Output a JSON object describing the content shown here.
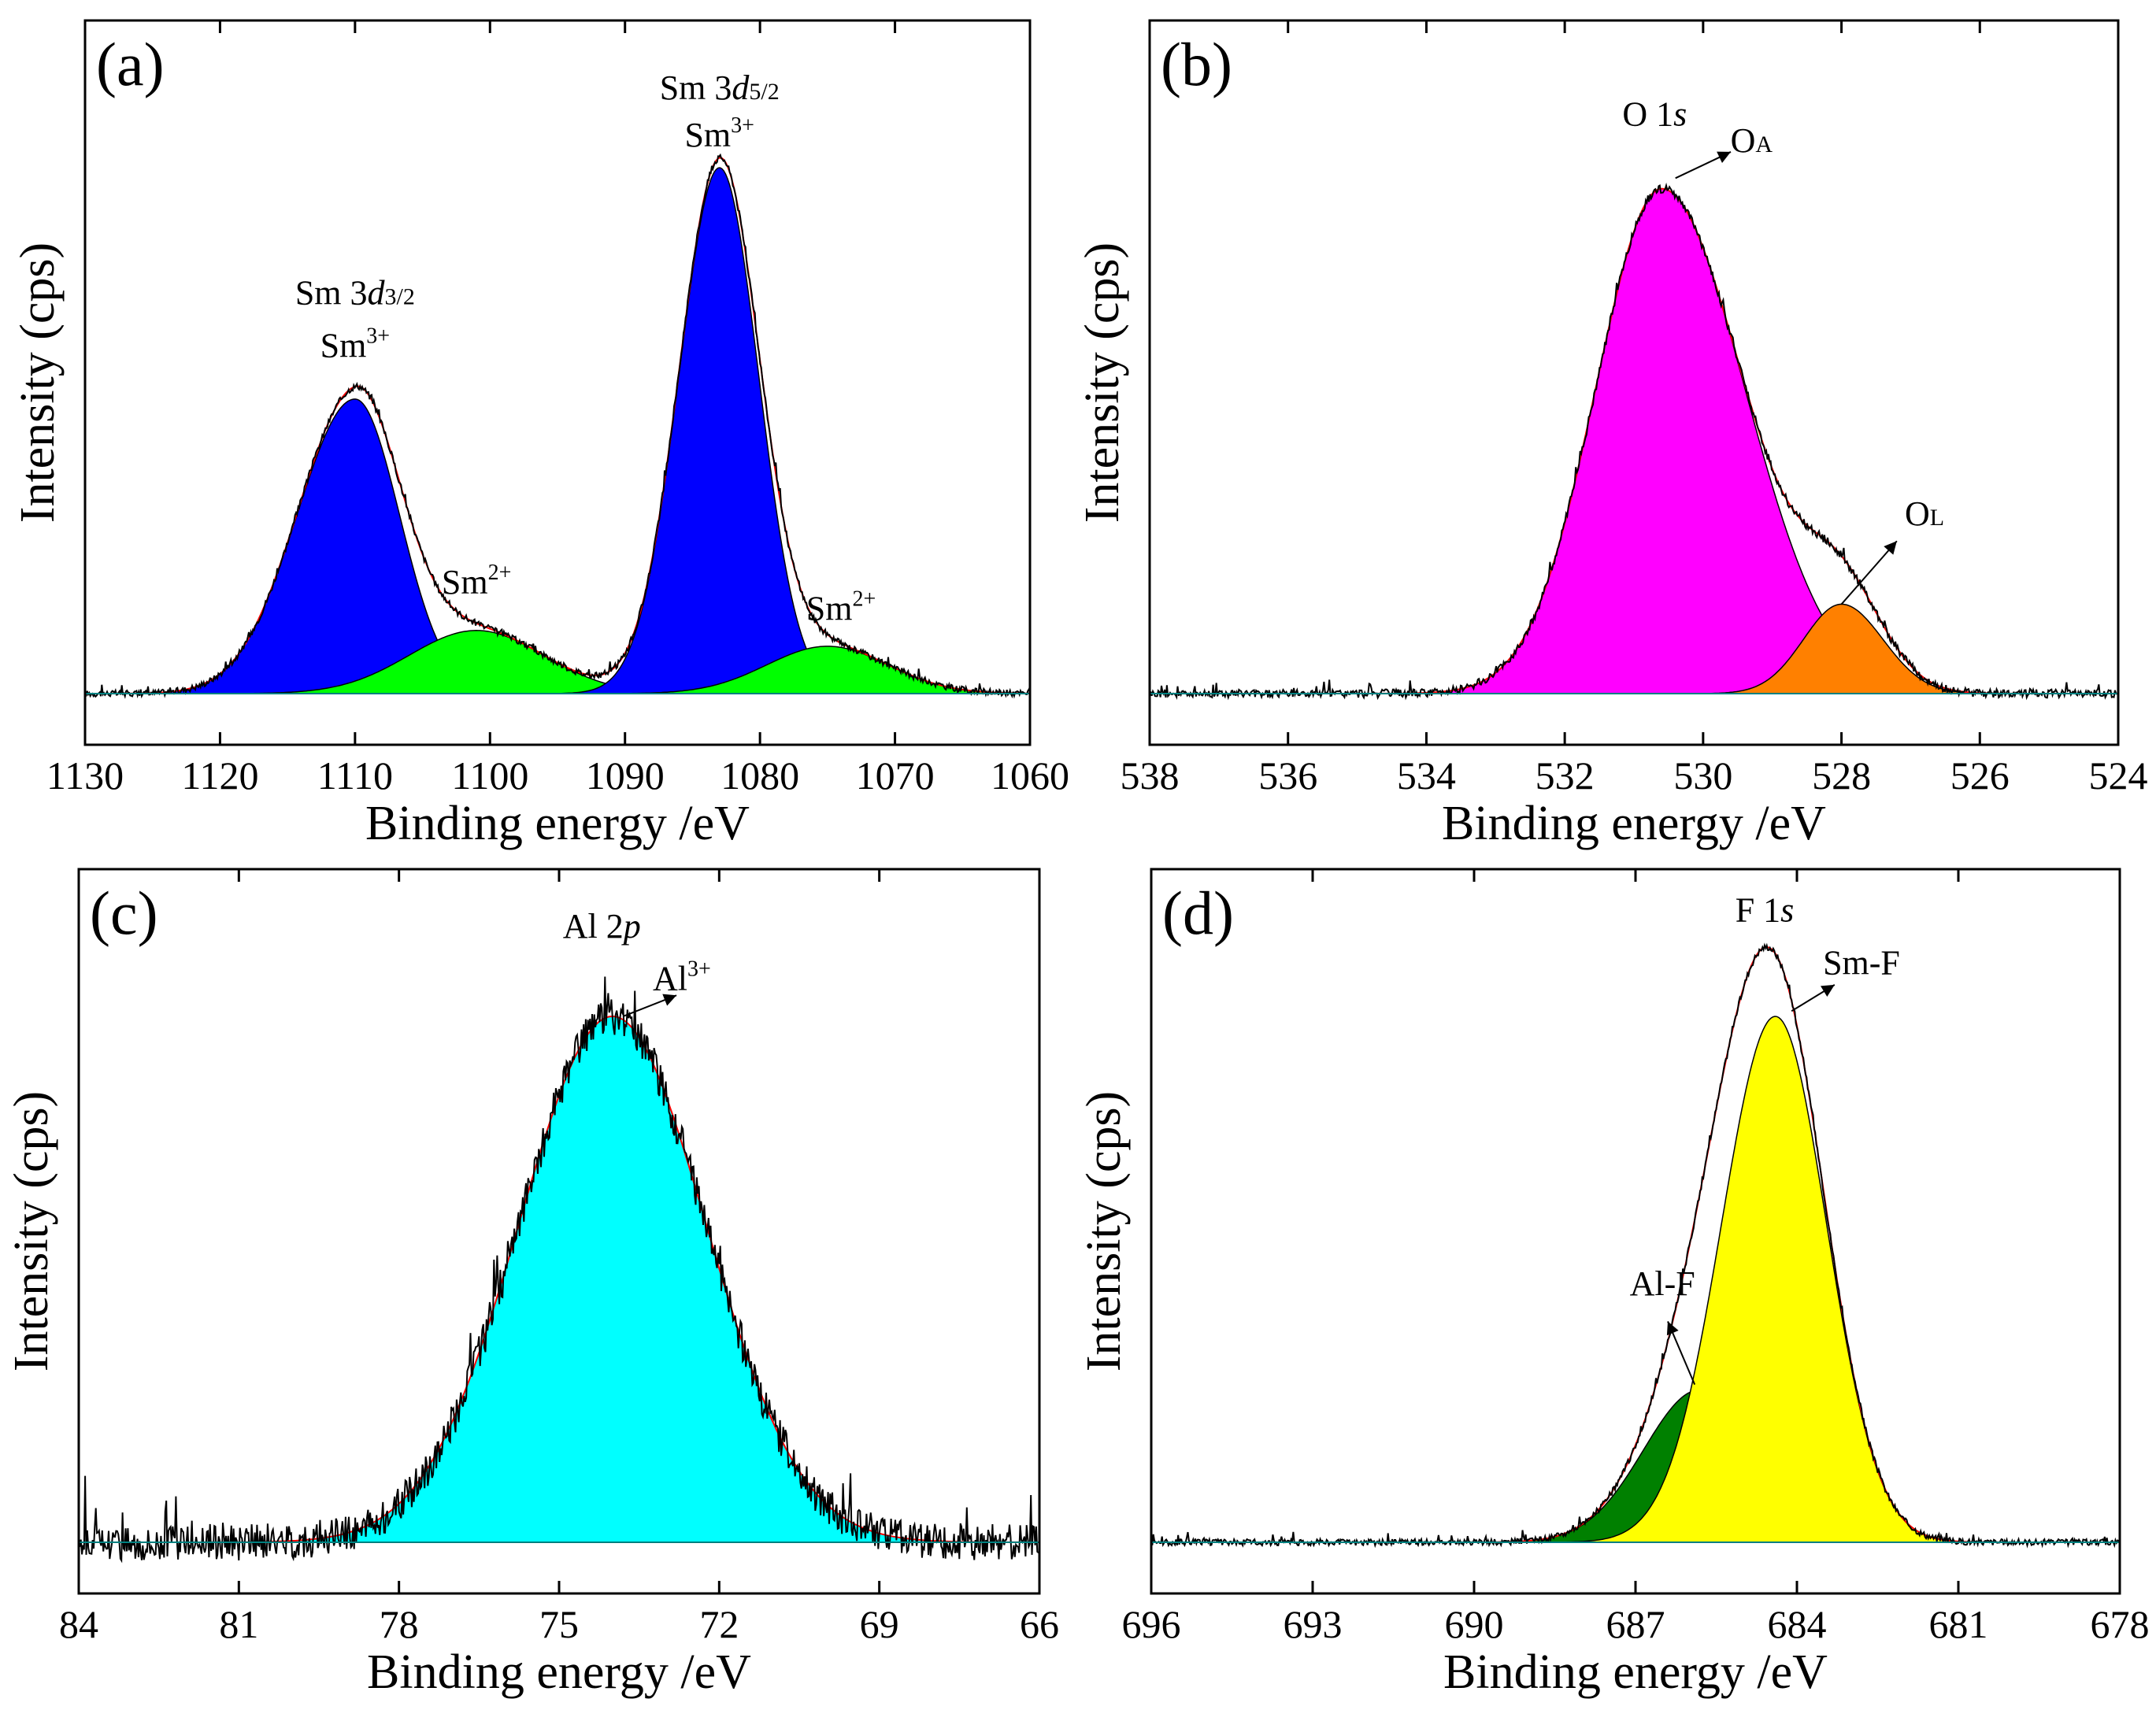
{
  "chart_data": [
    {
      "type": "area",
      "panel_label": "(a)",
      "xlabel": "Binding energy /eV",
      "ylabel": "Intensity (cps)",
      "xlim": [
        1130,
        1060
      ],
      "xaxis_reversed": true,
      "xticks": [
        1130,
        1120,
        1110,
        1100,
        1090,
        1080,
        1070,
        1060
      ],
      "ylim": [
        0,
        1.0
      ],
      "fill_alpha": 1.0,
      "raw_noise": 0.006,
      "raw_shape": "sum",
      "components": [
        {
          "name": "Sm 3d3/2 Sm3+",
          "center": 1110,
          "amplitude": 0.56,
          "sigma_left": 3.3,
          "sigma_right": 4.3,
          "color": "#0000ff"
        },
        {
          "name": "Sm 3d3/2 Sm2+",
          "center": 1101,
          "amplitude": 0.12,
          "sigma_left": 5.0,
          "sigma_right": 5.0,
          "color": "#00ff00"
        },
        {
          "name": "Sm 3d5/2 Sm3+",
          "center": 1083,
          "amplitude": 1.0,
          "sigma_left": 2.9,
          "sigma_right": 3.0,
          "color": "#0000ff"
        },
        {
          "name": "Sm 3d5/2 Sm2+",
          "center": 1075,
          "amplitude": 0.09,
          "sigma_left": 4.5,
          "sigma_right": 4.5,
          "color": "#00ff00"
        }
      ],
      "annotations": [
        {
          "lines": [
            "Sm 3",
            "d",
            "3/2"
          ],
          "x": 1110,
          "y": 0.74,
          "kind": "orbital"
        },
        {
          "lines": [
            "Sm",
            "3+"
          ],
          "x": 1110,
          "y": 0.64,
          "kind": "ion"
        },
        {
          "lines": [
            "Sm",
            "2+"
          ],
          "x": 1101,
          "y": 0.19,
          "kind": "ion"
        },
        {
          "lines": [
            "Sm 3",
            "d",
            "5/2"
          ],
          "x": 1083,
          "y": 1.13,
          "kind": "orbital"
        },
        {
          "lines": [
            "Sm",
            "3+"
          ],
          "x": 1083,
          "y": 1.04,
          "kind": "ion"
        },
        {
          "lines": [
            "Sm",
            "2+"
          ],
          "x": 1074,
          "y": 0.14,
          "kind": "ion"
        }
      ]
    },
    {
      "type": "area",
      "panel_label": "(b)",
      "xlabel": "Binding energy /eV",
      "ylabel": "Intensity (cps)",
      "xlim": [
        538,
        524
      ],
      "xaxis_reversed": true,
      "xticks": [
        538,
        536,
        534,
        532,
        530,
        528,
        526,
        524
      ],
      "ylim": [
        0,
        1.0
      ],
      "fill_alpha": 1.0,
      "raw_noise": 0.008,
      "raw_shape": "sum",
      "components": [
        {
          "name": "OA",
          "center": 530.6,
          "amplitude": 0.96,
          "sigma_left": 1.2,
          "sigma_right": 0.95,
          "color": "#ff00ff"
        },
        {
          "name": "OL",
          "center": 528.0,
          "amplitude": 0.17,
          "sigma_left": 0.6,
          "sigma_right": 0.55,
          "color": "#ff8000"
        }
      ],
      "annotations": [
        {
          "lines": [
            "O 1",
            "s"
          ],
          "x": 530.7,
          "y": 1.08,
          "kind": "orbital-italic-tail"
        },
        {
          "lines": [
            "O",
            "A"
          ],
          "x": 529.3,
          "y": 1.03,
          "kind": "sub",
          "arrow_from": [
            530.4,
            0.98
          ],
          "arrow_to": [
            529.6,
            1.03
          ]
        },
        {
          "lines": [
            "O",
            "L"
          ],
          "x": 526.8,
          "y": 0.32,
          "kind": "sub",
          "arrow_from": [
            528.0,
            0.17
          ],
          "arrow_to": [
            527.2,
            0.29
          ]
        }
      ]
    },
    {
      "type": "area",
      "panel_label": "(c)",
      "xlabel": "Binding energy /eV",
      "ylabel": "Intensity (cps)",
      "xlim": [
        84,
        66
      ],
      "xaxis_reversed": true,
      "xticks": [
        84,
        81,
        78,
        75,
        72,
        69,
        66
      ],
      "ylim": [
        0,
        1.0
      ],
      "fill_alpha": 1.0,
      "raw_noise": 0.035,
      "raw_shape": "sum",
      "components": [
        {
          "name": "Al3+",
          "center": 74.0,
          "amplitude": 1.0,
          "sigma_left": 1.75,
          "sigma_right": 1.75,
          "color": "#00ffff"
        }
      ],
      "annotations": [
        {
          "lines": [
            "Al 2",
            "p"
          ],
          "x": 74.2,
          "y": 1.15,
          "kind": "orbital-italic-tail"
        },
        {
          "lines": [
            "Al",
            "3+"
          ],
          "x": 72.7,
          "y": 1.05,
          "kind": "ion",
          "arrow_from": [
            73.8,
            1.0
          ],
          "arrow_to": [
            72.8,
            1.04
          ]
        }
      ]
    },
    {
      "type": "area",
      "panel_label": "(d)",
      "xlabel": "Binding energy /eV",
      "ylabel": "Intensity (cps)",
      "xlim": [
        696,
        678
      ],
      "xaxis_reversed": true,
      "xticks": [
        696,
        693,
        690,
        687,
        684,
        681,
        678
      ],
      "ylim": [
        0,
        1.0
      ],
      "fill_alpha": 1.0,
      "raw_noise": 0.006,
      "raw_shape": "sum",
      "components": [
        {
          "name": "Al-F",
          "center": 685.8,
          "amplitude": 0.29,
          "sigma_left": 1.05,
          "sigma_right": 1.05,
          "color": "#008000"
        },
        {
          "name": "Sm-F",
          "center": 684.4,
          "amplitude": 1.0,
          "sigma_left": 0.95,
          "sigma_right": 1.0,
          "color": "#ffff00"
        }
      ],
      "annotations": [
        {
          "lines": [
            "F 1",
            "s"
          ],
          "x": 684.6,
          "y": 1.18,
          "kind": "orbital-italic-tail"
        },
        {
          "lines": [
            "Sm-F"
          ],
          "x": 682.8,
          "y": 1.08,
          "kind": "plain",
          "arrow_from": [
            684.1,
            1.01
          ],
          "arrow_to": [
            683.3,
            1.06
          ]
        },
        {
          "lines": [
            "Al-F"
          ],
          "x": 686.5,
          "y": 0.47,
          "kind": "plain",
          "arrow_from": [
            685.9,
            0.3
          ],
          "arrow_to": [
            686.4,
            0.42
          ]
        }
      ]
    }
  ]
}
